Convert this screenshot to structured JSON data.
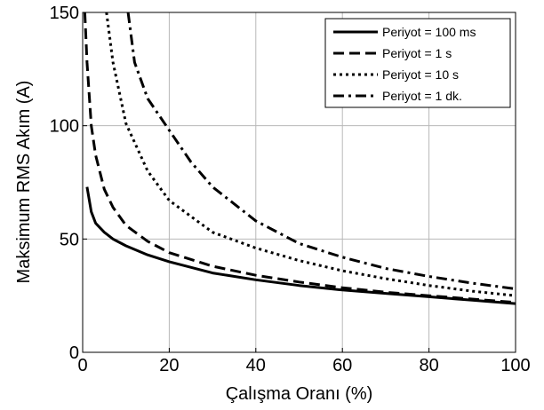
{
  "chart_data": {
    "type": "line",
    "title": "",
    "xlabel": "Çalışma Oranı (%)",
    "ylabel": "Maksimum RMS Akım (A)",
    "xlim": [
      0,
      100
    ],
    "ylim": [
      0,
      150
    ],
    "x_ticks": [
      "0",
      "20",
      "40",
      "60",
      "80",
      "100"
    ],
    "y_ticks": [
      "0",
      "50",
      "100",
      "150"
    ],
    "x_tick_values": [
      0,
      20,
      40,
      60,
      80,
      100
    ],
    "y_tick_values": [
      0,
      50,
      100,
      150
    ],
    "grid": true,
    "legend_position": "top-right",
    "series": [
      {
        "name": "Periyot = 100 ms",
        "style": "solid",
        "x": [
          1,
          2,
          3,
          5,
          7,
          10,
          15,
          20,
          30,
          40,
          50,
          60,
          70,
          80,
          90,
          100
        ],
        "y": [
          73,
          62,
          57,
          53,
          50,
          47,
          43,
          40,
          35,
          32,
          29.5,
          27.5,
          26,
          24.5,
          23,
          21.5
        ]
      },
      {
        "name": "Periyot = 1 s",
        "style": "dashed",
        "x": [
          0.5,
          1,
          2,
          3,
          5,
          7,
          10,
          15,
          20,
          30,
          40,
          50,
          60,
          70,
          80,
          90,
          100
        ],
        "y": [
          150,
          128,
          100,
          87,
          72,
          64,
          56,
          49,
          44,
          38,
          34,
          31,
          28.5,
          26.5,
          25,
          23.5,
          22
        ]
      },
      {
        "name": "Periyot = 10 s",
        "style": "dotted",
        "x": [
          5.5,
          7,
          10,
          15,
          20,
          30,
          40,
          50,
          60,
          70,
          80,
          90,
          100
        ],
        "y": [
          150,
          128,
          101,
          80,
          67,
          53,
          46,
          40.5,
          36,
          32.5,
          29.5,
          27,
          25
        ]
      },
      {
        "name": "Periyot = 1 dk.",
        "style": "dashdot",
        "x": [
          10.5,
          12,
          15,
          20,
          25,
          30,
          40,
          50,
          60,
          70,
          80,
          90,
          100
        ],
        "y": [
          150,
          128,
          112,
          98,
          84,
          73,
          58,
          48,
          42,
          37,
          33.5,
          30.5,
          28
        ]
      }
    ]
  }
}
